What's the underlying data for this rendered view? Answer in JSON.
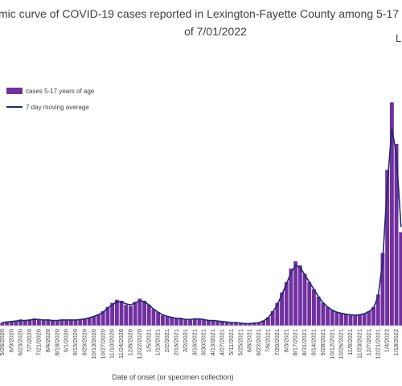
{
  "chart_data": {
    "type": "bar",
    "title": [
      "mic curve of COVID-19 cases reported in Lexington-Fayette County among 5-17",
      "of 7/01/2022"
    ],
    "title_extra": "L",
    "x_label": "Date of onset (or specimen collection)",
    "categories": [
      "5/26/2020",
      null,
      "6/9/2020",
      null,
      "6/23/2020",
      null,
      "7/7/2020",
      null,
      "7/21/2020",
      null,
      "8/4/2020",
      null,
      "8/18/2020",
      null,
      "9/1/2020",
      null,
      "9/15/2020",
      null,
      "9/29/2020",
      null,
      "10/13/2020",
      null,
      "10/27/2020",
      null,
      "11/10/2020",
      null,
      "11/24/2020",
      null,
      "12/8/2020",
      null,
      "12/22/2020",
      null,
      "1/5/2021",
      null,
      "1/19/2021",
      null,
      "2/2/2021",
      null,
      "2/16/2021",
      null,
      "3/2/2021",
      null,
      "3/16/2021",
      null,
      "3/30/2021",
      null,
      "4/13/2021",
      null,
      "4/27/2021",
      null,
      "5/11/2021",
      null,
      "5/25/2021",
      null,
      "6/8/2021",
      null,
      "6/22/2021",
      null,
      "7/6/2021",
      null,
      "7/20/2021",
      null,
      "8/3/2021",
      null,
      "8/17/2021",
      null,
      "8/31/2021",
      null,
      "9/14/2021",
      null,
      "9/28/2021",
      null,
      "10/12/2021",
      null,
      "10/26/2021",
      null,
      "11/9/2021",
      null,
      "11/23/2021",
      null,
      "12/7/2021",
      null,
      "12/21/2021",
      null,
      "1/4/2022",
      null,
      "1/18/2022",
      null
    ],
    "series": [
      {
        "name": "cases 5-17 years of age",
        "color": "#7030a0",
        "kind": "bar",
        "values": [
          3,
          4,
          4,
          5,
          6,
          5,
          6,
          7,
          6,
          5,
          6,
          5,
          5,
          6,
          5,
          6,
          5,
          6,
          7,
          8,
          9,
          11,
          14,
          18,
          22,
          25,
          24,
          20,
          19,
          23,
          26,
          24,
          20,
          16,
          13,
          10,
          9,
          8,
          7,
          7,
          6,
          6,
          7,
          7,
          6,
          5,
          5,
          4,
          4,
          3,
          3,
          3,
          2,
          2,
          2,
          3,
          3,
          5,
          8,
          14,
          22,
          32,
          42,
          55,
          62,
          58,
          50,
          42,
          35,
          28,
          22,
          18,
          15,
          13,
          12,
          11,
          10,
          10,
          11,
          12,
          14,
          18,
          30,
          70,
          150,
          215,
          175,
          90
        ]
      },
      {
        "name": "7 day moving average",
        "color": "#1f2a6b",
        "kind": "line",
        "values": [
          3,
          3.5,
          4,
          4.5,
          5,
          5,
          5.5,
          6,
          6,
          5.5,
          5.5,
          5,
          5,
          5.5,
          5.5,
          5.5,
          5.5,
          6,
          6.5,
          7.5,
          9,
          10.5,
          13,
          17,
          20,
          23,
          23,
          21,
          20,
          22,
          24,
          23,
          20,
          16,
          13,
          10.5,
          9,
          8,
          7,
          7,
          6,
          6,
          6.5,
          6.5,
          6,
          5,
          5,
          4.5,
          4,
          3.5,
          3,
          3,
          2.5,
          2,
          2,
          2.5,
          3,
          4.5,
          7.5,
          13,
          20,
          30,
          40,
          51,
          58,
          56,
          49,
          42,
          35,
          28,
          22,
          18,
          15,
          13,
          12,
          11,
          10.5,
          10,
          10.5,
          11.5,
          13.5,
          17,
          28,
          62,
          135,
          190,
          165,
          95
        ]
      }
    ],
    "ylim": [
      0,
      240
    ],
    "legend": "upper left"
  }
}
